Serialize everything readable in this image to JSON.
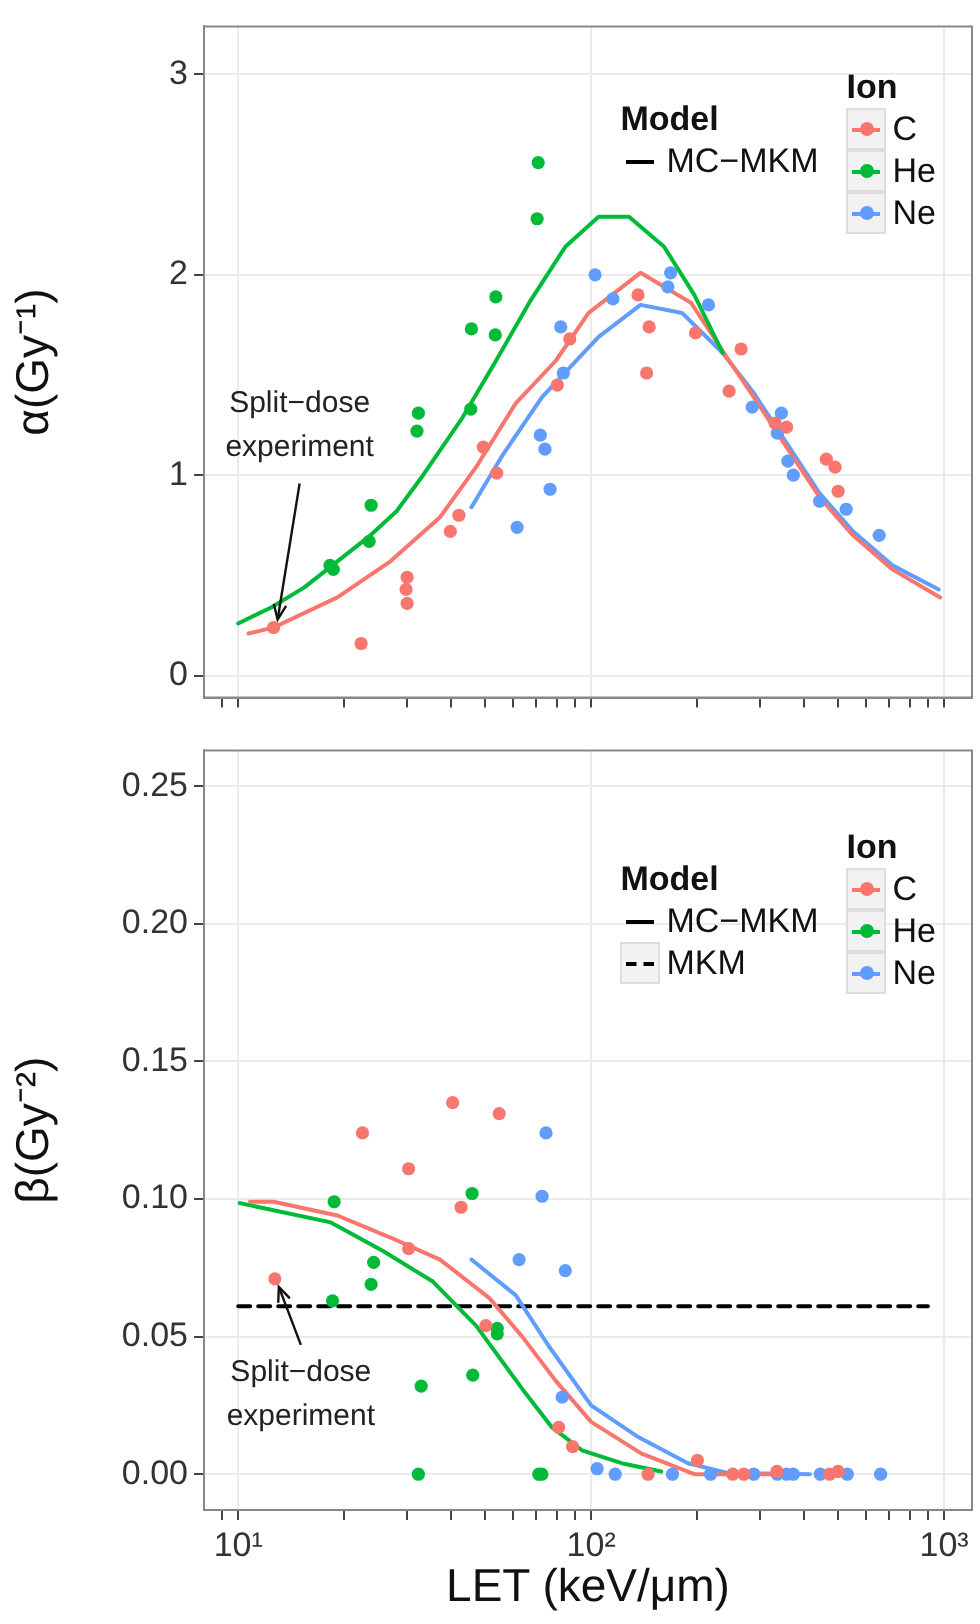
{
  "chart_data": [
    {
      "type": "scatter",
      "ylabel": "α(Gy⁻¹)",
      "legend_title": "Ion",
      "legend": "top right",
      "grid": true,
      "marker": "circle",
      "log": "x",
      "tick_labels": "y",
      "xlim": [
        8,
        1200
      ],
      "ylim": [
        -0.11,
        3.24
      ],
      "yticks": [
        0,
        1,
        2,
        3
      ],
      "xticks": [
        {
          "value": 9,
          "label": null
        },
        {
          "value": 10,
          "label": null
        },
        {
          "value": 20,
          "label": null
        },
        {
          "value": 30,
          "label": null
        },
        {
          "value": 40,
          "label": null
        },
        {
          "value": 50,
          "label": null
        },
        {
          "value": 60,
          "label": null
        },
        {
          "value": 70,
          "label": null
        },
        {
          "value": 80,
          "label": null
        },
        {
          "value": 90,
          "label": null
        },
        {
          "value": 100,
          "label": null
        },
        {
          "value": 200,
          "label": null
        },
        {
          "value": 300,
          "label": null
        },
        {
          "value": 400,
          "label": null
        },
        {
          "value": 500,
          "label": null
        },
        {
          "value": 600,
          "label": null
        },
        {
          "value": 700,
          "label": null
        },
        {
          "value": 800,
          "label": null
        },
        {
          "value": 900,
          "label": null
        },
        {
          "value": 1000,
          "label": null
        }
      ],
      "annotations": [
        "Model",
        "MC−MKM",
        {
          "text": "Split−dose\nexperiment",
          "x": 12.6,
          "y": 0.24
        }
      ],
      "series": [
        {
          "name": "C",
          "type": "scatter",
          "color": "#f8766d",
          "x": [
            12.6,
            22.3,
            30.1,
            29.9,
            30.1,
            39.9,
            42.2,
            49.5,
            54.0,
            80.2,
            87.0,
            135.8,
            146,
            143.6,
            197.6,
            246,
            266,
            332,
            358,
            464,
            491,
            501
          ],
          "values": [
            0.24,
            0.16,
            0.49,
            0.43,
            0.36,
            0.72,
            0.8,
            1.14,
            1.01,
            1.45,
            1.68,
            1.9,
            1.74,
            1.51,
            1.71,
            1.42,
            1.63,
            1.26,
            1.24,
            1.08,
            1.04,
            0.92
          ]
        },
        {
          "name": "He",
          "type": "scatter",
          "color": "#00ba38",
          "x": [
            18.2,
            18.6,
            23.8,
            23.5,
            32.4,
            32.1,
            45.6,
            45.8,
            53.7,
            53.5,
            70.3,
            70.8
          ],
          "values": [
            0.55,
            0.53,
            0.85,
            0.67,
            1.31,
            1.22,
            1.33,
            1.73,
            1.89,
            1.7,
            2.28,
            2.56
          ]
        },
        {
          "name": "Ne",
          "type": "scatter",
          "color": "#619cff",
          "x": [
            61.7,
            71.8,
            74.0,
            76.5,
            82.0,
            83.4,
            102.6,
            115.3,
            168,
            165,
            215,
            286,
            346,
            337,
            361,
            374,
            444,
            528,
            655
          ],
          "values": [
            0.74,
            1.2,
            1.13,
            0.93,
            1.74,
            1.51,
            2.0,
            1.88,
            2.01,
            1.94,
            1.85,
            1.34,
            1.31,
            1.21,
            1.07,
            1.0,
            0.87,
            0.83,
            0.7
          ]
        },
        {
          "type": "line",
          "color": "#00ba38",
          "marker": "none",
          "line_style": "solid",
          "x": [
            10,
            12.4,
            15.4,
            19.1,
            23.7,
            28.1,
            33.4,
            43.3,
            53.7,
            66.7,
            84.5,
            105,
            128,
            161,
            196,
            236
          ],
          "values": [
            0.26,
            0.34,
            0.44,
            0.57,
            0.7,
            0.82,
            1.0,
            1.29,
            1.57,
            1.86,
            2.14,
            2.29,
            2.29,
            2.14,
            1.9,
            1.61
          ]
        },
        {
          "type": "line",
          "color": "#f8766d",
          "marker": "none",
          "line_style": "solid",
          "x": [
            10.7,
            12.6,
            19.1,
            27.0,
            37.3,
            47.2,
            61.2,
            79.3,
            98.4,
            138,
            192,
            238,
            289,
            358,
            444,
            552,
            714,
            975
          ],
          "values": [
            0.21,
            0.24,
            0.39,
            0.57,
            0.79,
            1.04,
            1.36,
            1.57,
            1.81,
            2.01,
            1.86,
            1.61,
            1.39,
            1.14,
            0.89,
            0.7,
            0.53,
            0.39
          ]
        },
        {
          "type": "line",
          "color": "#619cff",
          "marker": "none",
          "line_style": "solid",
          "x": [
            45.8,
            56.1,
            72.6,
            105,
            138,
            181,
            236,
            289,
            358,
            444,
            552,
            714,
            966
          ],
          "values": [
            0.84,
            1.1,
            1.39,
            1.69,
            1.85,
            1.81,
            1.61,
            1.41,
            1.16,
            0.91,
            0.72,
            0.55,
            0.43
          ]
        }
      ]
    },
    {
      "type": "scatter",
      "ylabel": "β(Gy⁻²)",
      "xlabel": "LET (keV/μm)",
      "legend_title": "Ion",
      "legend": "top right",
      "grid": true,
      "marker": "circle",
      "log": "x",
      "xlim": [
        8,
        1200
      ],
      "ylim": [
        -0.013,
        0.263
      ],
      "yticks": [
        {
          "value": 0,
          "label": "0.00"
        },
        {
          "value": 0.05,
          "label": "0.05"
        },
        {
          "value": 0.1,
          "label": "0.10"
        },
        {
          "value": 0.15,
          "label": "0.15"
        },
        {
          "value": 0.2,
          "label": "0.20"
        },
        {
          "value": 0.25,
          "label": "0.25"
        }
      ],
      "xticks": [
        {
          "value": 9,
          "label": null
        },
        {
          "value": 10,
          "label": "10¹"
        },
        {
          "value": 20,
          "label": null
        },
        {
          "value": 30,
          "label": null
        },
        {
          "value": 40,
          "label": null
        },
        {
          "value": 50,
          "label": null
        },
        {
          "value": 60,
          "label": null
        },
        {
          "value": 70,
          "label": null
        },
        {
          "value": 80,
          "label": null
        },
        {
          "value": 90,
          "label": null
        },
        {
          "value": 100,
          "label": "10²"
        },
        {
          "value": 200,
          "label": null
        },
        {
          "value": 300,
          "label": null
        },
        {
          "value": 400,
          "label": null
        },
        {
          "value": 500,
          "label": null
        },
        {
          "value": 600,
          "label": null
        },
        {
          "value": 700,
          "label": null
        },
        {
          "value": 800,
          "label": null
        },
        {
          "value": 900,
          "label": null
        },
        {
          "value": 1000,
          "label": "10³"
        }
      ],
      "annotations": [
        "Model",
        "MC−MKM",
        {
          "text": "Split−dose\nexperiment",
          "x": 12.7,
          "y": 0.071
        }
      ],
      "series": [
        {
          "name": "C",
          "type": "scatter",
          "color": "#f8766d",
          "x": [
            12.7,
            22.5,
            30.4,
            30.4,
            40.5,
            42.8,
            54.9,
            50.3,
            80.9,
            88.6,
            145,
            200,
            252,
            271,
            336,
            474,
            501
          ],
          "values": [
            0.071,
            0.124,
            0.111,
            0.082,
            0.135,
            0.097,
            0.131,
            0.054,
            0.017,
            0.01,
            0,
            0.005,
            0,
            0,
            0.001,
            0,
            0.001
          ]
        },
        {
          "name": "He",
          "type": "scatter",
          "color": "#00ba38",
          "x": [
            18.7,
            18.5,
            24.2,
            23.8,
            33.0,
            32.4,
            46.0,
            46.2,
            54.2,
            54.2,
            71.1,
            72.5
          ],
          "values": [
            0.099,
            0.063,
            0.077,
            0.069,
            0.032,
            0,
            0.102,
            0.036,
            0.053,
            0.051,
            0,
            0
          ]
        },
        {
          "name": "Ne",
          "type": "scatter",
          "color": "#619cff",
          "x": [
            74.5,
            72.6,
            62.5,
            84.5,
            82.8,
            104,
            117,
            170,
            218,
            289,
            337,
            358,
            374,
            446,
            532,
            661
          ],
          "values": [
            0.124,
            0.101,
            0.078,
            0.074,
            0.028,
            0.002,
            0,
            0,
            0,
            0,
            0,
            0,
            0,
            0,
            0,
            0
          ]
        },
        {
          "type": "line",
          "color": "#f8766d",
          "marker": "none",
          "line_style": "solid",
          "x": [
            10.8,
            12.6,
            19.1,
            27.0,
            37.3,
            51.5,
            63.8,
            79.3,
            100,
            139,
            196,
            374
          ],
          "values": [
            0.099,
            0.099,
            0.094,
            0.086,
            0.078,
            0.064,
            0.05,
            0.034,
            0.019,
            0.0075,
            0,
            0
          ]
        },
        {
          "type": "line",
          "color": "#00ba38",
          "marker": "none",
          "line_style": "solid",
          "x": [
            10.1,
            18.3,
            25.8,
            35.6,
            47.2,
            63.8,
            77.5,
            94.2,
            122,
            158
          ],
          "values": [
            0.0985,
            0.0915,
            0.081,
            0.07,
            0.054,
            0.031,
            0.017,
            0.0087,
            0.004,
            0.001
          ]
        },
        {
          "type": "line",
          "color": "#619cff",
          "marker": "none",
          "line_style": "solid",
          "x": [
            45.8,
            61.2,
            75.9,
            100,
            136,
            188,
            243,
            417
          ],
          "values": [
            0.078,
            0.065,
            0.0465,
            0.025,
            0.0135,
            0.004,
            0.0005,
            0
          ]
        },
        {
          "name": "MKM",
          "type": "line",
          "color": "#000000",
          "marker": "none",
          "line_style": "dashed",
          "x": [
            10,
            900
          ],
          "values": [
            0.061,
            0.061
          ]
        }
      ]
    }
  ]
}
